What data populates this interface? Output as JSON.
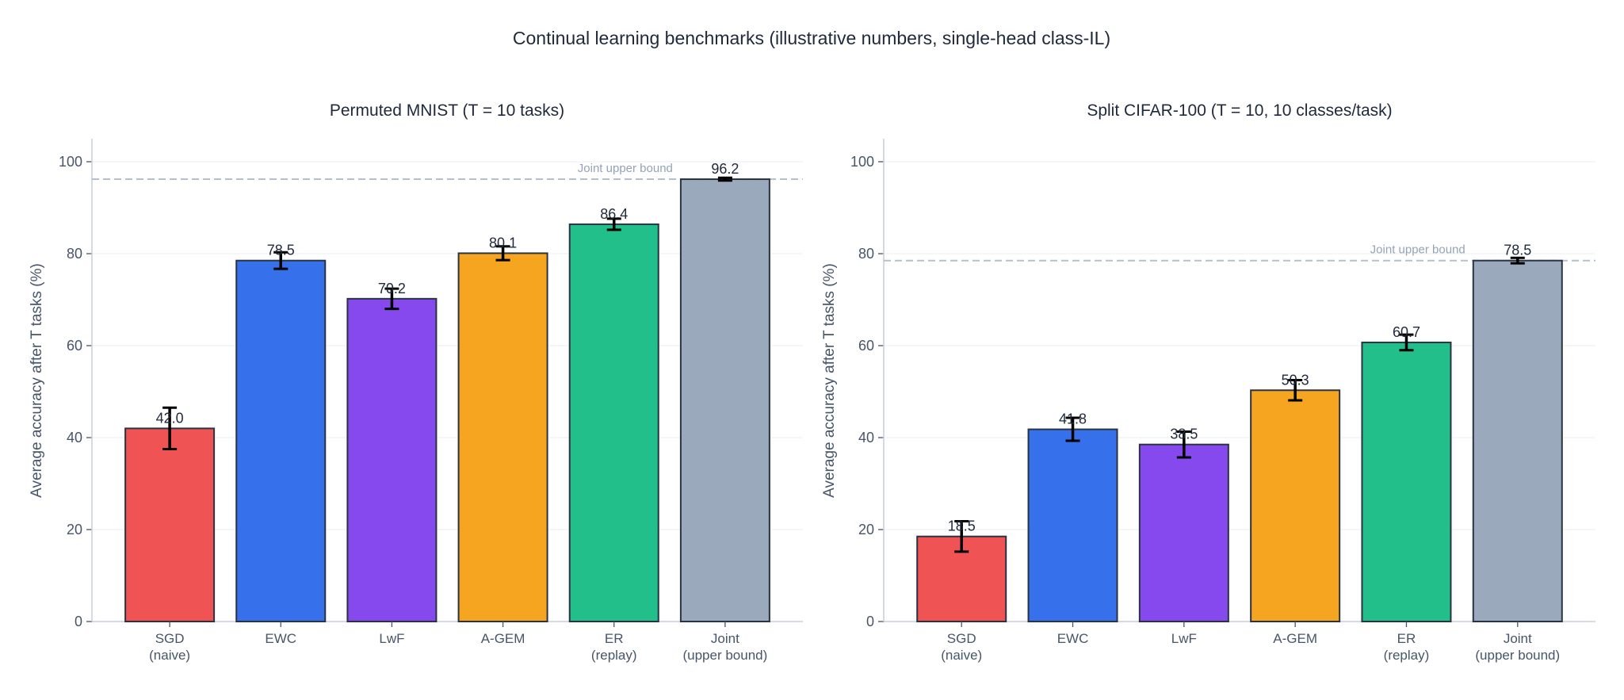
{
  "suptitle": "Continual learning benchmarks  (illustrative numbers, single-head class-IL)",
  "colors": {
    "bars": [
      "#ef5353",
      "#3670ea",
      "#8549ed",
      "#f5a51f",
      "#22bf8a",
      "#9aaabc"
    ],
    "edge": "#2a3342",
    "grid": "#eef2f7",
    "axis": "#c7d0dc",
    "text": "#475569",
    "title": "#1e293b",
    "reference_line": "#b4bfd0"
  },
  "chart_data": [
    {
      "type": "bar",
      "title": "Permuted MNIST  (T = 10 tasks)",
      "ylabel": "Average accuracy after T tasks (%)",
      "xlabel": "",
      "categories": [
        [
          "SGD",
          "(naive)"
        ],
        [
          "EWC"
        ],
        [
          "LwF"
        ],
        [
          "A-GEM"
        ],
        [
          "ER",
          "(replay)"
        ],
        [
          "Joint",
          "(upper bound)"
        ]
      ],
      "values": [
        42.0,
        78.5,
        70.2,
        80.1,
        86.4,
        96.2
      ],
      "value_labels": [
        "42.0",
        "78.5",
        "70.2",
        "80.1",
        "86.4",
        "96.2"
      ],
      "errors": [
        4.5,
        1.8,
        2.2,
        1.5,
        1.2,
        0.3
      ],
      "reference_line": {
        "value": 96.2,
        "label": "Joint upper bound",
        "style": "dashed"
      },
      "yticks": [
        0,
        20,
        40,
        60,
        80,
        100
      ],
      "ylim": [
        0,
        105
      ],
      "grid": "horizontal"
    },
    {
      "type": "bar",
      "title": "Split CIFAR-100  (T = 10, 10 classes/task)",
      "ylabel": "Average accuracy after T tasks (%)",
      "xlabel": "",
      "categories": [
        [
          "SGD",
          "(naive)"
        ],
        [
          "EWC"
        ],
        [
          "LwF"
        ],
        [
          "A-GEM"
        ],
        [
          "ER",
          "(replay)"
        ],
        [
          "Joint",
          "(upper bound)"
        ]
      ],
      "values": [
        18.5,
        41.8,
        38.5,
        50.3,
        60.7,
        78.5
      ],
      "value_labels": [
        "18.5",
        "41.8",
        "38.5",
        "50.3",
        "60.7",
        "78.5"
      ],
      "errors": [
        3.3,
        2.5,
        2.8,
        2.2,
        1.7,
        0.6
      ],
      "reference_line": {
        "value": 78.5,
        "label": "Joint upper bound",
        "style": "dashed"
      },
      "yticks": [
        0,
        20,
        40,
        60,
        80,
        100
      ],
      "ylim": [
        0,
        105
      ],
      "grid": "horizontal"
    }
  ]
}
